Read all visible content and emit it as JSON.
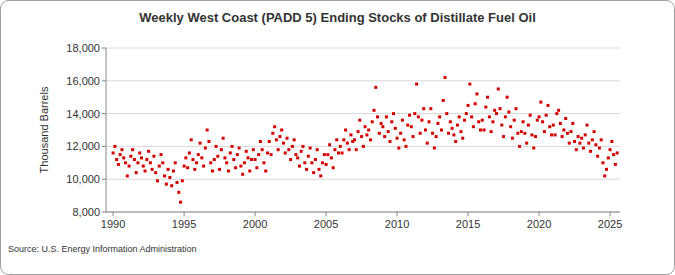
{
  "chart_data": {
    "type": "scatter",
    "title": "Weekly West Coast (PADD 5) Ending Stocks of Distillate Fuel Oil",
    "y_label": "Thousand Barrels",
    "source": "Source: U.S. Energy Information Administration",
    "color": "#d40000",
    "marker": "square",
    "grid": true,
    "xlim": [
      1989.5,
      2025.7
    ],
    "ylim": [
      8000,
      18000
    ],
    "xticks": [
      1990,
      1995,
      2000,
      2005,
      2010,
      2015,
      2020,
      2025
    ],
    "yticks": [
      {
        "value": 8000,
        "label": "8,000"
      },
      {
        "value": 10000,
        "label": "10,000"
      },
      {
        "value": 12000,
        "label": "12,000"
      },
      {
        "value": 14000,
        "label": "14,000"
      },
      {
        "value": 16000,
        "label": "16,000"
      },
      {
        "value": 18000,
        "label": "18,000"
      }
    ],
    "x": [
      1990,
      1990.125,
      1990.25,
      1990.375,
      1990.5,
      1990.625,
      1990.75,
      1990.875,
      1991,
      1991.125,
      1991.25,
      1991.375,
      1991.5,
      1991.625,
      1991.75,
      1991.875,
      1992,
      1992.125,
      1992.25,
      1992.375,
      1992.5,
      1992.625,
      1992.75,
      1992.875,
      1993,
      1993.125,
      1993.25,
      1993.375,
      1993.5,
      1993.625,
      1993.75,
      1993.875,
      1994,
      1994.125,
      1994.25,
      1994.375,
      1994.5,
      1994.625,
      1994.75,
      1994.875,
      1995,
      1995.125,
      1995.25,
      1995.375,
      1995.5,
      1995.625,
      1995.75,
      1995.875,
      1996,
      1996.125,
      1996.25,
      1996.375,
      1996.5,
      1996.625,
      1996.75,
      1996.875,
      1997,
      1997.125,
      1997.25,
      1997.375,
      1997.5,
      1997.625,
      1997.75,
      1997.875,
      1998,
      1998.125,
      1998.25,
      1998.375,
      1998.5,
      1998.625,
      1998.75,
      1998.875,
      1999,
      1999.125,
      1999.25,
      1999.375,
      1999.5,
      1999.625,
      1999.75,
      1999.875,
      2000,
      2000.125,
      2000.25,
      2000.375,
      2000.5,
      2000.625,
      2000.75,
      2000.875,
      2001,
      2001.125,
      2001.25,
      2001.375,
      2001.5,
      2001.625,
      2001.75,
      2001.875,
      2002,
      2002.125,
      2002.25,
      2002.375,
      2002.5,
      2002.625,
      2002.75,
      2002.875,
      2003,
      2003.125,
      2003.25,
      2003.375,
      2003.5,
      2003.625,
      2003.75,
      2003.875,
      2004,
      2004.125,
      2004.25,
      2004.375,
      2004.5,
      2004.625,
      2004.75,
      2004.875,
      2005,
      2005.125,
      2005.25,
      2005.375,
      2005.5,
      2005.625,
      2005.75,
      2005.875,
      2006,
      2006.125,
      2006.25,
      2006.375,
      2006.5,
      2006.625,
      2006.75,
      2006.875,
      2007,
      2007.125,
      2007.25,
      2007.375,
      2007.5,
      2007.625,
      2007.75,
      2007.875,
      2008,
      2008.125,
      2008.25,
      2008.375,
      2008.5,
      2008.625,
      2008.75,
      2008.875,
      2009,
      2009.125,
      2009.25,
      2009.375,
      2009.5,
      2009.625,
      2009.75,
      2009.875,
      2010,
      2010.125,
      2010.25,
      2010.375,
      2010.5,
      2010.625,
      2010.75,
      2010.875,
      2011,
      2011.125,
      2011.25,
      2011.375,
      2011.5,
      2011.625,
      2011.75,
      2011.875,
      2012,
      2012.125,
      2012.25,
      2012.375,
      2012.5,
      2012.625,
      2012.75,
      2012.875,
      2013,
      2013.125,
      2013.25,
      2013.375,
      2013.5,
      2013.625,
      2013.75,
      2013.875,
      2014,
      2014.125,
      2014.25,
      2014.375,
      2014.5,
      2014.625,
      2014.75,
      2014.875,
      2015,
      2015.125,
      2015.25,
      2015.375,
      2015.5,
      2015.625,
      2015.75,
      2015.875,
      2016,
      2016.125,
      2016.25,
      2016.375,
      2016.5,
      2016.625,
      2016.75,
      2016.875,
      2017,
      2017.125,
      2017.25,
      2017.375,
      2017.5,
      2017.625,
      2017.75,
      2017.875,
      2018,
      2018.125,
      2018.25,
      2018.375,
      2018.5,
      2018.625,
      2018.75,
      2018.875,
      2019,
      2019.125,
      2019.25,
      2019.375,
      2019.5,
      2019.625,
      2019.75,
      2019.875,
      2020,
      2020.125,
      2020.25,
      2020.375,
      2020.5,
      2020.625,
      2020.75,
      2020.875,
      2021,
      2021.125,
      2021.25,
      2021.375,
      2021.5,
      2021.625,
      2021.75,
      2021.875,
      2022,
      2022.125,
      2022.25,
      2022.375,
      2022.5,
      2022.625,
      2022.75,
      2022.875,
      2023,
      2023.125,
      2023.25,
      2023.375,
      2023.5,
      2023.625,
      2023.75,
      2023.875,
      2024,
      2024.125,
      2024.25,
      2024.375,
      2024.5,
      2024.625,
      2024.75,
      2024.875,
      2025,
      2025.125,
      2025.25,
      2025.375,
      2025.5
    ],
    "values": [
      11600,
      12000,
      11200,
      10900,
      11500,
      11800,
      11300,
      11000,
      10200,
      10800,
      11400,
      11800,
      11200,
      10400,
      11000,
      11600,
      11300,
      10800,
      10500,
      11200,
      11700,
      11000,
      10600,
      11400,
      10400,
      9900,
      10800,
      11500,
      11000,
      10200,
      9700,
      10600,
      10100,
      9600,
      10500,
      11000,
      9800,
      9200,
      8600,
      9900,
      10800,
      11300,
      10700,
      11600,
      12400,
      11200,
      10600,
      11000,
      11500,
      12200,
      11300,
      10800,
      11900,
      13000,
      12300,
      11000,
      10500,
      11200,
      12000,
      11400,
      10600,
      11800,
      12500,
      11300,
      11000,
      10500,
      11600,
      12000,
      11200,
      10700,
      11500,
      11900,
      10800,
      10300,
      11000,
      11700,
      11300,
      10500,
      11200,
      11800,
      11200,
      10700,
      11500,
      12300,
      11800,
      11000,
      10500,
      11600,
      12300,
      11500,
      12800,
      13200,
      12400,
      11800,
      12600,
      13000,
      12200,
      11600,
      12500,
      11800,
      11200,
      12000,
      12400,
      11500,
      11300,
      10800,
      11700,
      12000,
      11000,
      10600,
      11400,
      11900,
      11000,
      10400,
      11200,
      11800,
      10600,
      10200,
      11000,
      11500,
      10900,
      11500,
      12100,
      11300,
      10700,
      11800,
      12400,
      11600,
      12000,
      11600,
      12400,
      13000,
      12200,
      11800,
      12700,
      12300,
      12400,
      11800,
      12900,
      13600,
      12600,
      12000,
      13200,
      12700,
      13000,
      12400,
      13500,
      14200,
      15600,
      13800,
      12800,
      13400,
      13200,
      12600,
      13800,
      12900,
      12300,
      13500,
      14000,
      13100,
      12500,
      11900,
      12800,
      13600,
      12400,
      12000,
      13300,
      13900,
      13200,
      12600,
      14000,
      15800,
      13800,
      12800,
      13600,
      14300,
      13000,
      12200,
      13500,
      14300,
      12800,
      11900,
      12600,
      13400,
      13800,
      13000,
      14800,
      16200,
      14000,
      12800,
      13500,
      13100,
      12700,
      12300,
      13300,
      13800,
      12900,
      12500,
      13600,
      14000,
      14500,
      15800,
      13800,
      13200,
      14600,
      15200,
      13500,
      13000,
      13600,
      13000,
      14400,
      15000,
      13800,
      12900,
      13500,
      14200,
      14000,
      15500,
      14300,
      13300,
      12600,
      13800,
      15000,
      14100,
      13200,
      12500,
      13600,
      14300,
      12800,
      12000,
      12900,
      13500,
      12800,
      12200,
      13300,
      13900,
      12700,
      11900,
      12600,
      13600,
      13800,
      14700,
      13500,
      12900,
      13900,
      14500,
      13200,
      12700,
      13300,
      12700,
      14000,
      14200,
      13400,
      12600,
      13000,
      13700,
      12800,
      12200,
      12900,
      13400,
      12300,
      11800,
      12600,
      12200,
      12500,
      11900,
      12700,
      13300,
      12200,
      11700,
      12400,
      12900,
      12100,
      11400,
      11900,
      12400,
      11000,
      10200,
      10600,
      11300,
      11800,
      12300,
      11500,
      10900,
      11600
    ]
  }
}
